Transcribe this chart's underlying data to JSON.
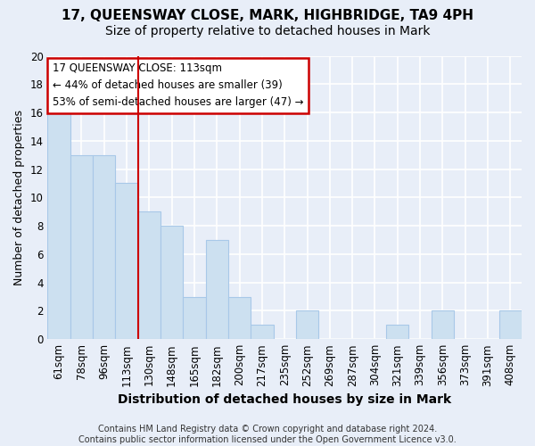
{
  "title1": "17, QUEENSWAY CLOSE, MARK, HIGHBRIDGE, TA9 4PH",
  "title2": "Size of property relative to detached houses in Mark",
  "xlabel": "Distribution of detached houses by size in Mark",
  "ylabel": "Number of detached properties",
  "bar_labels": [
    "61sqm",
    "78sqm",
    "96sqm",
    "113sqm",
    "130sqm",
    "148sqm",
    "165sqm",
    "182sqm",
    "200sqm",
    "217sqm",
    "235sqm",
    "252sqm",
    "269sqm",
    "287sqm",
    "304sqm",
    "321sqm",
    "339sqm",
    "356sqm",
    "373sqm",
    "391sqm",
    "408sqm"
  ],
  "bar_values": [
    16,
    13,
    13,
    11,
    9,
    8,
    3,
    7,
    3,
    1,
    0,
    2,
    0,
    0,
    0,
    1,
    0,
    2,
    0,
    0,
    2
  ],
  "bar_color": "#cce0f0",
  "bar_edgecolor": "#a8c8e8",
  "highlight_index": 3,
  "vline_color": "#cc0000",
  "annotation_text": "17 QUEENSWAY CLOSE: 113sqm\n← 44% of detached houses are smaller (39)\n53% of semi-detached houses are larger (47) →",
  "annotation_box_facecolor": "#ffffff",
  "annotation_box_edgecolor": "#cc0000",
  "ylim": [
    0,
    20
  ],
  "yticks": [
    0,
    2,
    4,
    6,
    8,
    10,
    12,
    14,
    16,
    18,
    20
  ],
  "footnote": "Contains HM Land Registry data © Crown copyright and database right 2024.\nContains public sector information licensed under the Open Government Licence v3.0.",
  "bg_color": "#e8eef8",
  "plot_bg_color": "#e8eef8",
  "grid_color": "#ffffff",
  "title1_fontsize": 11,
  "title2_fontsize": 10,
  "xlabel_fontsize": 10,
  "ylabel_fontsize": 9,
  "footnote_fontsize": 7,
  "tick_fontsize": 8.5
}
